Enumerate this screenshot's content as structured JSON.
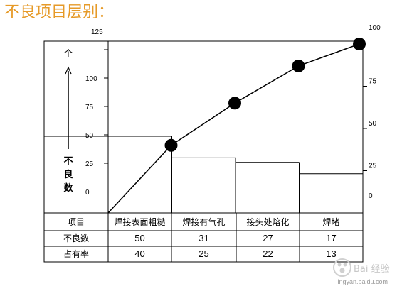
{
  "title": "不良项目层别：",
  "chart_data": {
    "type": "bar",
    "combo": "pareto",
    "categories": [
      "焊接表面粗糙",
      "焊接有气孔",
      "接头处熔化",
      "焊堵"
    ],
    "values": [
      50,
      31,
      27,
      17
    ],
    "cumulative_percent": [
      40,
      65,
      87,
      100
    ],
    "ylabel_left": "不良数",
    "ylim_left": [
      0,
      125
    ],
    "yticks_left": [
      0,
      25,
      50,
      75,
      100,
      125
    ],
    "ylim_right": [
      0,
      100
    ],
    "yticks_right": [
      0,
      25,
      50,
      75,
      100
    ],
    "table": {
      "header": "项目",
      "rows": [
        {
          "label": "不良数",
          "values": [
            "50",
            "31",
            "27",
            "17"
          ]
        },
        {
          "label": "占有率",
          "values": [
            "40",
            "25",
            "22",
            "13"
          ]
        }
      ]
    },
    "grid": false,
    "legend": "none"
  },
  "watermark": {
    "text": "Bai 经验",
    "url": "jingyan.baidu.com"
  },
  "colors": {
    "title": "#e69a28",
    "axis": "#000000",
    "marker": "#000000",
    "watermark": "#c8c8c8"
  }
}
